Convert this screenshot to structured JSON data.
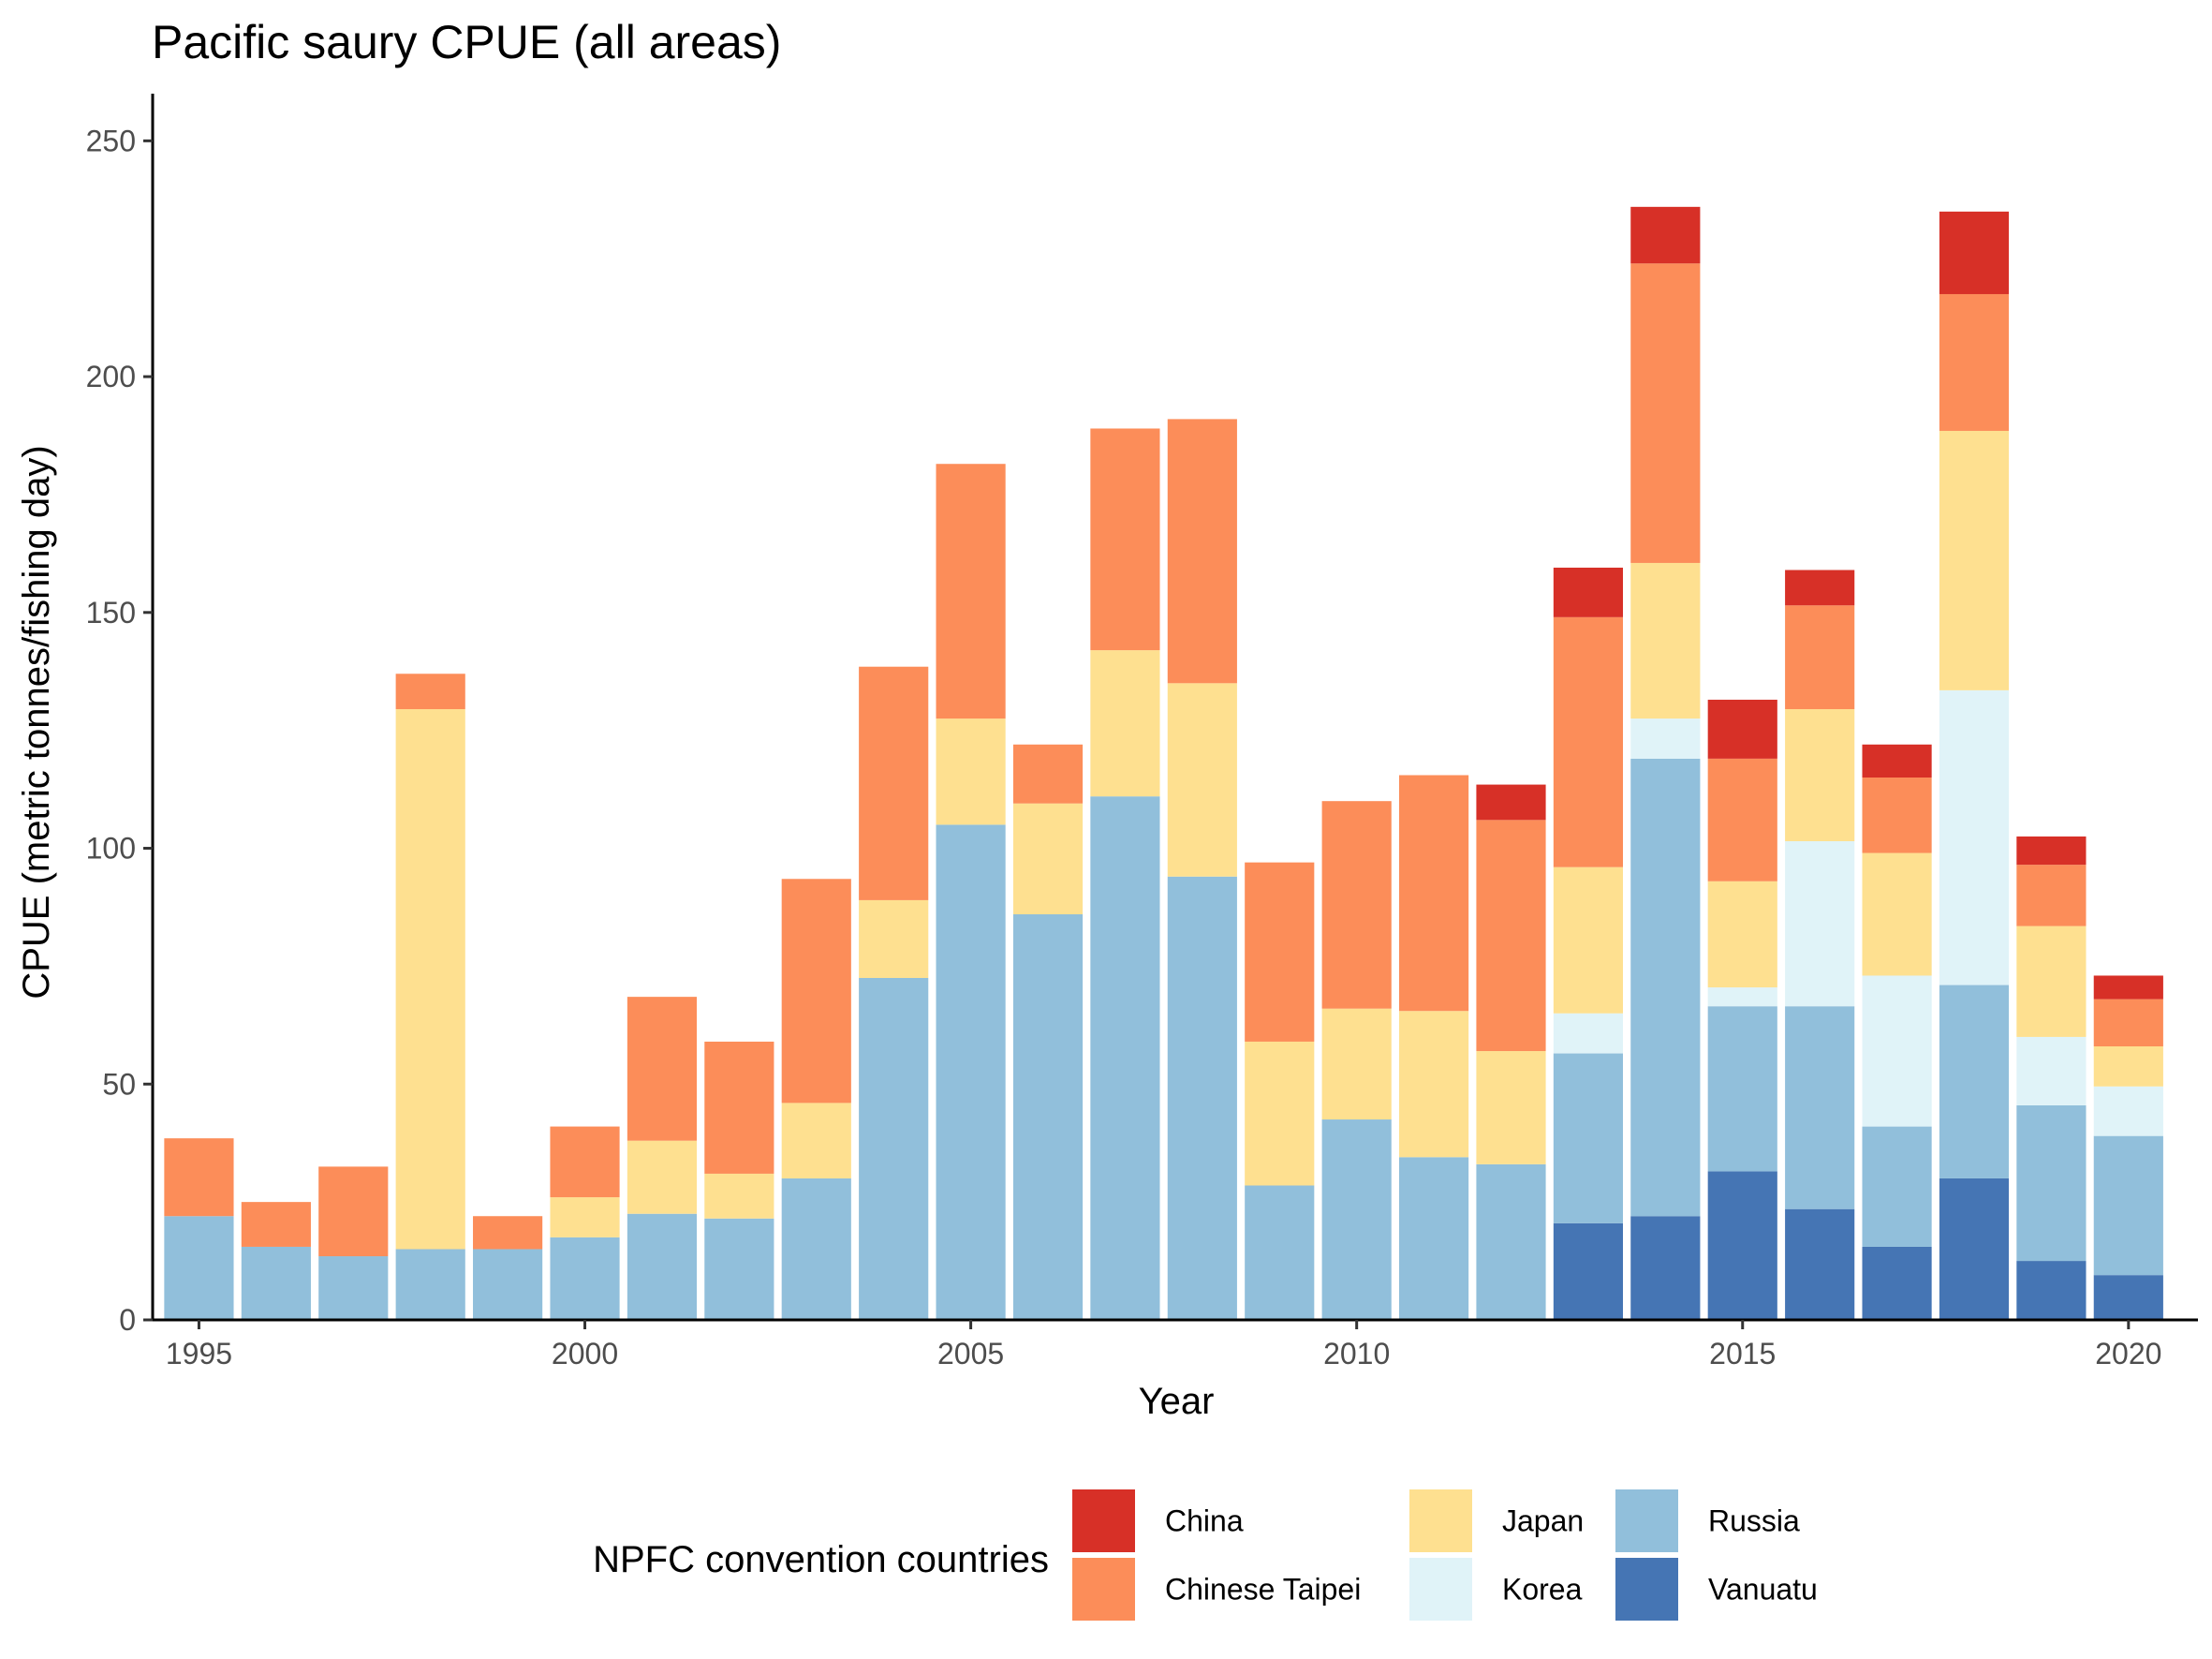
{
  "chart_data": {
    "type": "bar",
    "stacked": true,
    "title": "Pacific saury CPUE (all areas)",
    "xlabel": "Year",
    "ylabel": "CPUE (metric tonnes/fishing day)",
    "ylim": [
      0,
      260
    ],
    "yticks": [
      0,
      50,
      100,
      150,
      200,
      250
    ],
    "xticks": [
      1995,
      2000,
      2005,
      2010,
      2015,
      2020
    ],
    "legend_title": "NPFC convention countries",
    "legend_position": "bottom",
    "grid": false,
    "categories": [
      1995,
      1996,
      1997,
      1998,
      1999,
      2000,
      2001,
      2002,
      2003,
      2004,
      2005,
      2006,
      2007,
      2008,
      2009,
      2010,
      2011,
      2012,
      2013,
      2014,
      2015,
      2016,
      2017,
      2018,
      2019,
      2020
    ],
    "series": [
      {
        "name": "Vanuatu",
        "color": "#4575b4",
        "values": [
          0,
          0,
          0,
          0,
          0,
          0,
          0,
          0,
          0,
          0,
          0,
          0,
          0,
          0,
          0,
          0,
          0,
          0,
          20.5,
          22,
          31.5,
          23.5,
          15.5,
          30,
          12.5,
          9.5
        ]
      },
      {
        "name": "Russia",
        "color": "#91bfdb",
        "values": [
          22,
          15.5,
          13.5,
          15,
          15,
          17.5,
          22.5,
          21.5,
          30,
          72.5,
          105,
          86,
          111,
          94,
          28.5,
          42.5,
          34.5,
          33,
          36,
          97,
          35,
          43,
          25.5,
          41,
          33,
          29.5
        ]
      },
      {
        "name": "Korea",
        "color": "#e0f3f8",
        "values": [
          0,
          0,
          0,
          0,
          0,
          0,
          0,
          0,
          0,
          0,
          0,
          0,
          0,
          0,
          0,
          0,
          0,
          0,
          8.5,
          8.5,
          4,
          35,
          32,
          62.5,
          14.5,
          10.5
        ]
      },
      {
        "name": "Japan",
        "color": "#fee090",
        "values": [
          0,
          0,
          0,
          114.5,
          0,
          8.5,
          15.5,
          9.5,
          16,
          16.5,
          22.5,
          23.5,
          31,
          41,
          30.5,
          23.5,
          31,
          24,
          31,
          33,
          22.5,
          28,
          26,
          55,
          23.5,
          8.5
        ]
      },
      {
        "name": "Chinese Taipei",
        "color": "#fc8d59",
        "values": [
          16.5,
          9.5,
          19,
          7.5,
          7,
          15,
          30.5,
          28,
          47.5,
          49.5,
          54,
          12.5,
          47,
          56,
          38,
          44,
          50,
          49,
          53,
          63.5,
          26,
          22,
          16,
          29,
          13,
          10
        ]
      },
      {
        "name": "China",
        "color": "#d73027",
        "values": [
          0,
          0,
          0,
          0,
          0,
          0,
          0,
          0,
          0,
          0,
          0,
          0,
          0,
          0,
          0,
          0,
          0,
          7.5,
          10.5,
          12,
          12.5,
          7.5,
          7,
          17.5,
          6,
          5
        ]
      }
    ],
    "legend_order": [
      "China",
      "Chinese Taipei",
      "Japan",
      "Korea",
      "Russia",
      "Vanuatu"
    ]
  }
}
